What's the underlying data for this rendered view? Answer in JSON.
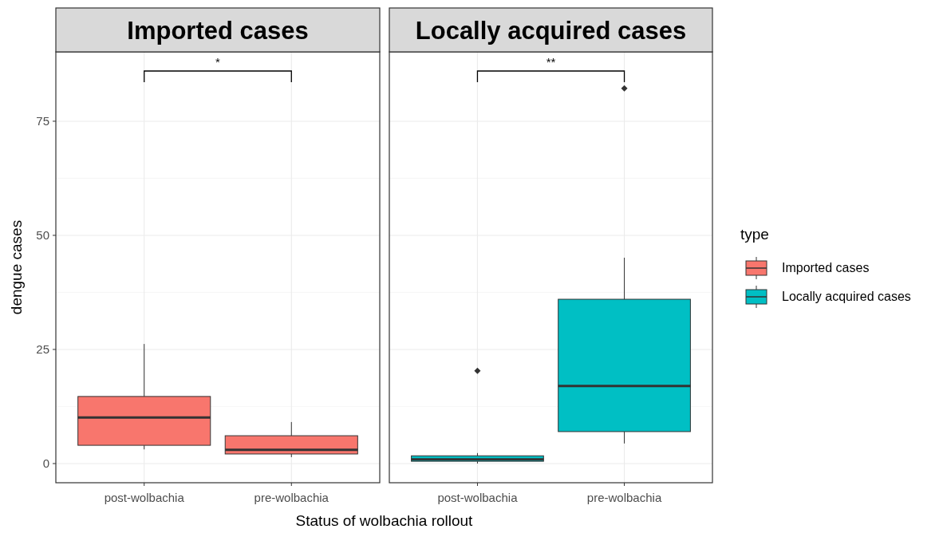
{
  "chart_data": [
    {
      "type": "box",
      "title": "Imported cases",
      "xlabel": "Status of wolbachia rollout",
      "ylabel": "dengue cases",
      "categories": [
        "post-wolbachia",
        "pre-wolbachia"
      ],
      "ylim": [
        -4.2,
        90.2
      ],
      "yticks": [
        0,
        25,
        50,
        75
      ],
      "grid": true,
      "legend": "right",
      "legend_title": "type",
      "annotations": [
        "*"
      ],
      "series": [
        {
          "name": "Imported cases",
          "color": "#f8766d",
          "boxes": [
            {
              "low": 3.1,
              "q1": 4,
              "median": 10.1,
              "q3": 14.7,
              "high": 26.2
            },
            {
              "low": 1.4,
              "q1": 2.1,
              "median": 3,
              "q3": 6.1,
              "high": 9.1
            }
          ]
        }
      ]
    },
    {
      "type": "box",
      "title": "Locally acquired cases",
      "categories": [
        "post-wolbachia",
        "pre-wolbachia"
      ],
      "ylim": [
        -4.2,
        90.2
      ],
      "yticks": [
        0,
        25,
        50,
        75
      ],
      "grid": true,
      "legend": "right",
      "tick_labels": "x",
      "annotations": [
        "**"
      ],
      "series": [
        {
          "name": "Locally acquired cases",
          "color": "#00bfc4",
          "boxes": [
            {
              "low": 0,
              "q1": 0.5,
              "median": 0.9,
              "q3": 1.7,
              "high": 2.3,
              "outliers": [
                20.3
              ]
            },
            {
              "low": 4.4,
              "q1": 7,
              "median": 17,
              "q3": 36,
              "high": 45.1,
              "outliers": [
                82.2
              ]
            }
          ]
        }
      ]
    }
  ]
}
